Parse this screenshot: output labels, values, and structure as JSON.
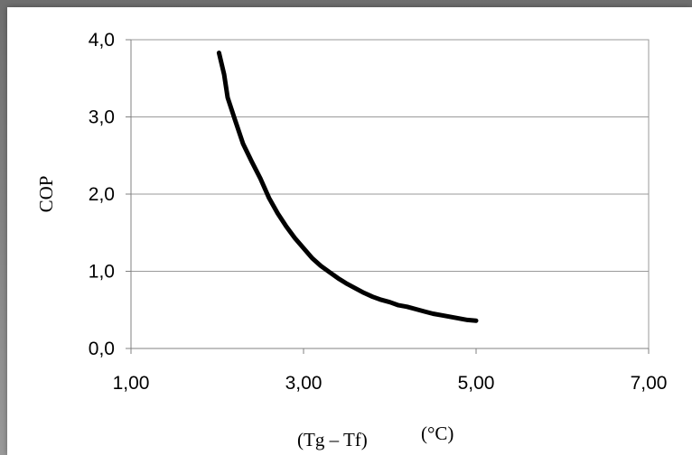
{
  "chart_data": {
    "type": "line",
    "xlabel": "(Tg – Tf)",
    "xunit": "(°C)",
    "ylabel": "COP",
    "xlim": [
      1,
      7
    ],
    "ylim": [
      0,
      4
    ],
    "x_ticks": [
      "1,00",
      "3,00",
      "5,00",
      "7,00"
    ],
    "y_ticks": [
      "0,0",
      "1,0",
      "2,0",
      "3,0",
      "4,0"
    ],
    "grid": true,
    "series": [
      {
        "color": "#000000",
        "x": [
          2.02,
          2.08,
          2.12,
          2.2,
          2.3,
          2.4,
          2.5,
          2.6,
          2.7,
          2.8,
          2.9,
          3.0,
          3.1,
          3.2,
          3.3,
          3.4,
          3.5,
          3.6,
          3.7,
          3.8,
          3.9,
          4.0,
          4.1,
          4.2,
          4.3,
          4.4,
          4.5,
          4.6,
          4.7,
          4.8,
          4.9,
          5.0
        ],
        "y": [
          3.83,
          3.55,
          3.25,
          2.98,
          2.65,
          2.42,
          2.2,
          1.95,
          1.75,
          1.58,
          1.43,
          1.3,
          1.17,
          1.07,
          0.99,
          0.91,
          0.84,
          0.78,
          0.72,
          0.67,
          0.63,
          0.6,
          0.56,
          0.54,
          0.51,
          0.48,
          0.45,
          0.43,
          0.41,
          0.39,
          0.37,
          0.36
        ]
      }
    ]
  }
}
